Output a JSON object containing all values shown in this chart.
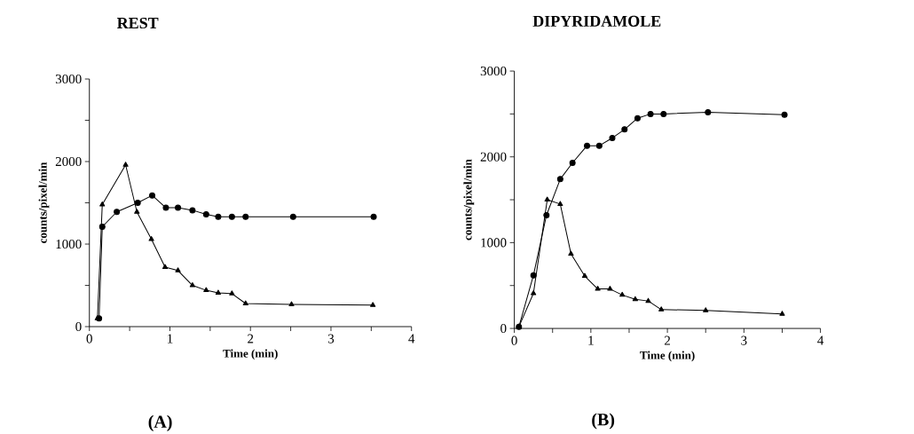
{
  "chart_data": [
    {
      "type": "line",
      "title": "REST",
      "xlabel": "Time  (min)",
      "ylabel": "counts/pixel/min",
      "annotations": [
        "(A)"
      ],
      "xlim": [
        0,
        4
      ],
      "ylim": [
        0,
        3000
      ],
      "xticks": [
        0,
        {
          "value": 0.5,
          "label": null
        },
        1,
        {
          "value": 1.5,
          "label": null
        },
        2,
        {
          "value": 2.5,
          "label": null
        },
        3,
        {
          "value": 3.5,
          "label": null
        },
        4
      ],
      "yticks": [
        0,
        {
          "value": 500,
          "label": null
        },
        1000,
        {
          "value": 1500,
          "label": null
        },
        2000,
        {
          "value": 2500,
          "label": null
        },
        3000
      ],
      "line_style": "solid",
      "series": [
        {
          "color": "#000000",
          "marker": "circle",
          "x": [
            0.12,
            0.16,
            0.34,
            0.6,
            0.78,
            0.95,
            1.1,
            1.28,
            1.45,
            1.6,
            1.77,
            1.94,
            2.53,
            3.53
          ],
          "values": [
            100,
            1210,
            1390,
            1500,
            1590,
            1440,
            1440,
            1410,
            1360,
            1330,
            1330,
            1330,
            1330,
            1330
          ]
        },
        {
          "color": "#000000",
          "marker": "triangle",
          "x": [
            0.1,
            0.16,
            0.45,
            0.59,
            0.77,
            0.94,
            1.1,
            1.28,
            1.45,
            1.6,
            1.77,
            1.94,
            2.51,
            3.52
          ],
          "values": [
            100,
            1480,
            1960,
            1390,
            1060,
            720,
            680,
            500,
            440,
            410,
            400,
            280,
            270,
            260
          ]
        }
      ]
    },
    {
      "type": "line",
      "title": "DIPYRIDAMOLE",
      "xlabel": "Time  (min)",
      "ylabel": "counts/pixel/min",
      "annotations": [
        "(B)"
      ],
      "xlim": [
        0,
        4
      ],
      "ylim": [
        0,
        3000
      ],
      "xticks": [
        0,
        {
          "value": 0.5,
          "label": null
        },
        1,
        {
          "value": 1.5,
          "label": null
        },
        2,
        {
          "value": 2.5,
          "label": null
        },
        3,
        {
          "value": 3.5,
          "label": null
        },
        4
      ],
      "yticks": [
        0,
        {
          "value": 500,
          "label": null
        },
        1000,
        {
          "value": 1500,
          "label": null
        },
        2000,
        {
          "value": 2500,
          "label": null
        },
        3000
      ],
      "line_style": "solid",
      "series": [
        {
          "color": "#000000",
          "marker": "circle",
          "x": [
            0.06,
            0.25,
            0.42,
            0.6,
            0.76,
            0.95,
            1.11,
            1.28,
            1.44,
            1.61,
            1.78,
            1.95,
            2.53,
            3.53
          ],
          "values": [
            20,
            620,
            1320,
            1740,
            1930,
            2130,
            2130,
            2220,
            2320,
            2450,
            2500,
            2500,
            2520,
            2490
          ]
        },
        {
          "color": "#000000",
          "marker": "triangle",
          "x": [
            0.06,
            0.25,
            0.43,
            0.6,
            0.74,
            0.92,
            1.09,
            1.25,
            1.41,
            1.58,
            1.75,
            1.92,
            2.5,
            3.5
          ],
          "values": [
            20,
            410,
            1500,
            1450,
            870,
            610,
            460,
            460,
            390,
            340,
            320,
            220,
            210,
            170
          ]
        }
      ]
    }
  ]
}
